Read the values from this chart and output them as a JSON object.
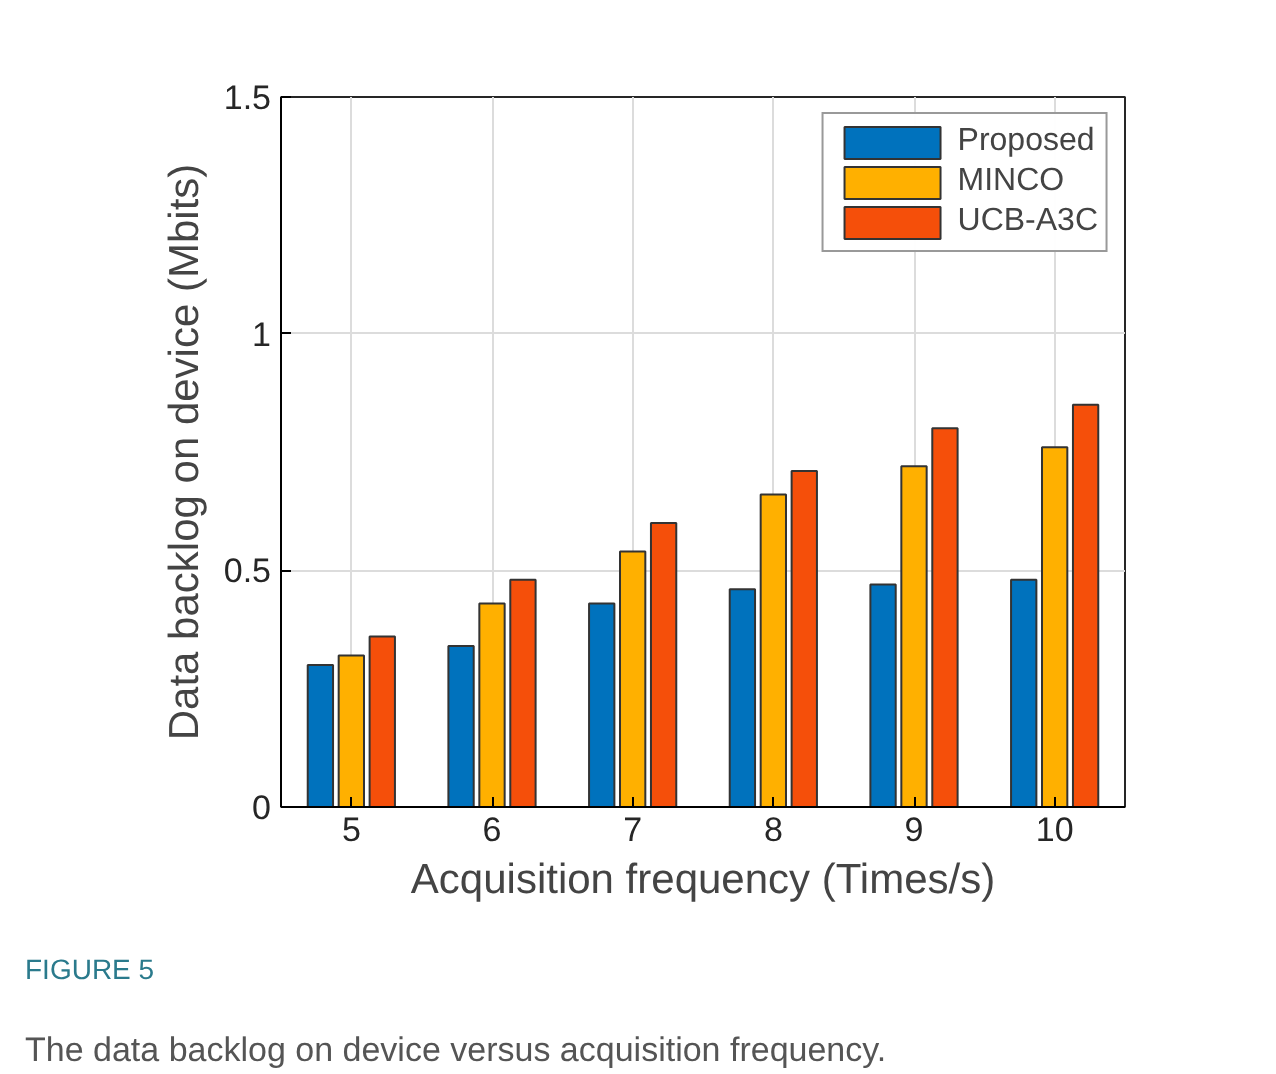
{
  "chart_data": {
    "type": "bar",
    "xlabel": "Acquisition frequency (Times/s)",
    "ylabel": "Data backlog on device (Mbits)",
    "categories": [
      "5",
      "6",
      "7",
      "8",
      "9",
      "10"
    ],
    "series": [
      {
        "name": "Proposed",
        "color": "#0072bd",
        "values": [
          0.3,
          0.34,
          0.43,
          0.46,
          0.47,
          0.48
        ]
      },
      {
        "name": "MINCO",
        "color": "#ffb000",
        "values": [
          0.32,
          0.43,
          0.54,
          0.66,
          0.72,
          0.76
        ]
      },
      {
        "name": "UCB-A3C",
        "color": "#f54f0a",
        "values": [
          0.36,
          0.48,
          0.6,
          0.71,
          0.8,
          0.85
        ]
      }
    ],
    "ylim": [
      0,
      1.5
    ],
    "yticks": [
      0,
      0.5,
      1,
      1.5
    ],
    "grid": true,
    "legend": "top right",
    "annotations": [
      "FIGURE 5",
      "The data backlog on device versus acquisition frequency."
    ]
  }
}
